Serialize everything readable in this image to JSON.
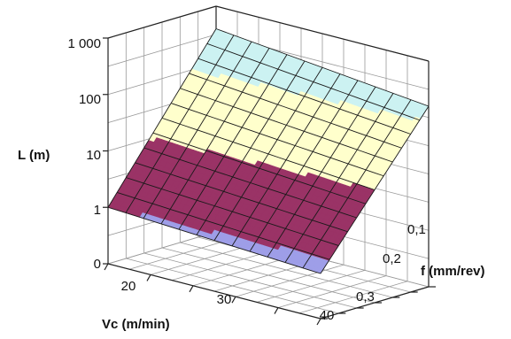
{
  "chart_data": {
    "type": "surface",
    "title": "",
    "zlabel": "L (m)",
    "xlabel": "Vc (m/min)",
    "ylabel": "f (mm/rev)",
    "z_scale": "log",
    "z_ticks": [
      "0",
      "1",
      "10",
      "100",
      "1 000"
    ],
    "x_ticks": [
      "20",
      "30",
      "40"
    ],
    "y_ticks": [
      "0,1",
      "0,2",
      "0,3"
    ],
    "x_range": [
      15,
      40
    ],
    "y_range": [
      0.05,
      0.35
    ],
    "z_range_log10": [
      -1,
      3
    ],
    "grid": true,
    "surface_corners_log10": {
      "vc15_f005": 2.6,
      "vc40_f005": 2.2,
      "vc15_f035": 0.0,
      "vc40_f035": -0.2
    },
    "color_bands": [
      {
        "from": "0",
        "to": "1",
        "color": "#9e9ee8"
      },
      {
        "from": "1",
        "to": "10",
        "color": "#9a3366"
      },
      {
        "from": "10",
        "to": "100",
        "color": "#ffffcc"
      },
      {
        "from": "100",
        "to": "1 000",
        "color": "#ccf2f2"
      }
    ]
  }
}
